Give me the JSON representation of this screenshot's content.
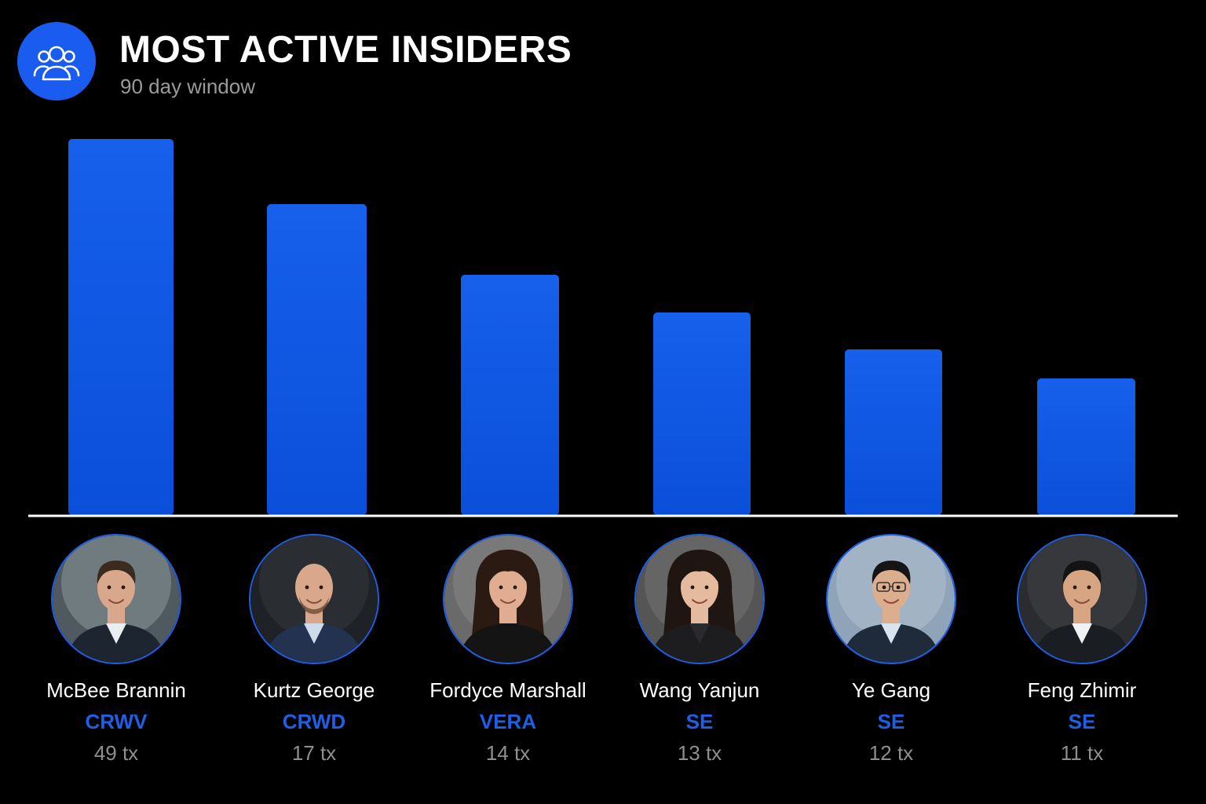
{
  "header": {
    "title": "MOST ACTIVE INSIDERS",
    "subtitle": "90 day window",
    "icon": "users-icon"
  },
  "colors": {
    "background": "#000000",
    "bar": "#1158e8",
    "accent": "#1a5cf0",
    "ticker": "#1f5fe8",
    "baseline": "#ffffff",
    "muted": "#8f8f8f"
  },
  "chart_data": {
    "type": "bar",
    "categories": [
      "McBee Brannin",
      "Kurtz George",
      "Fordyce Marshall",
      "Wang Yanjun",
      "Ye Gang",
      "Feng Zhimir"
    ],
    "tickers": [
      "CRWV",
      "CRWD",
      "VERA",
      "SE",
      "SE",
      "SE"
    ],
    "tx_labels": [
      "49 tx",
      "17 tx",
      "14 tx",
      "13 tx",
      "12 tx",
      "11 tx"
    ],
    "values": [
      49,
      17,
      14,
      13,
      12,
      11
    ],
    "title": "MOST ACTIVE INSIDERS",
    "subtitle": "90 day window",
    "xlabel": "",
    "ylabel": "",
    "axis_scale": "nonlinear (bars not proportional to labels)",
    "grid": false,
    "legend": "none"
  },
  "people": [
    {
      "name": "McBee Brannin",
      "ticker": "CRWV",
      "tx": "49 tx",
      "avatar": "man-dark-hair-photo"
    },
    {
      "name": "Kurtz George",
      "ticker": "CRWD",
      "tx": "17 tx",
      "avatar": "bald-man-beard-photo"
    },
    {
      "name": "Fordyce Marshall",
      "ticker": "VERA",
      "tx": "14 tx",
      "avatar": "woman-long-hair-photo"
    },
    {
      "name": "Wang Yanjun",
      "ticker": "SE",
      "tx": "13 tx",
      "avatar": "woman-shoulder-hair-photo"
    },
    {
      "name": "Ye Gang",
      "ticker": "SE",
      "tx": "12 tx",
      "avatar": "man-glasses-photo"
    },
    {
      "name": "Feng Zhimir",
      "ticker": "SE",
      "tx": "11 tx",
      "avatar": "man-suit-photo"
    }
  ]
}
